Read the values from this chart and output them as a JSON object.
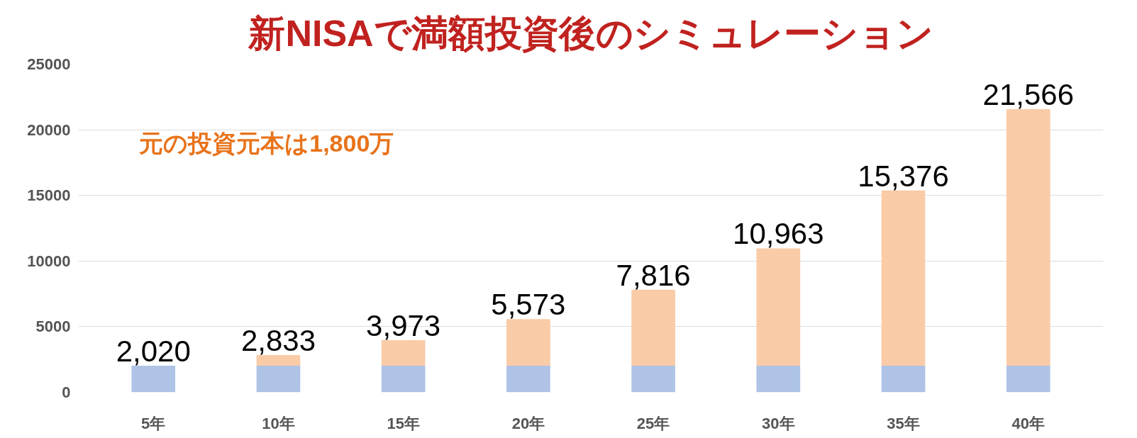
{
  "chart_data": {
    "type": "bar",
    "title": "新NISAで満額投資後のシミュレーション",
    "categories": [
      "5年",
      "10年",
      "15年",
      "20年",
      "25年",
      "30年",
      "35年",
      "40年"
    ],
    "stacked": true,
    "series": [
      {
        "color": "#aec3e6",
        "values": [
          2020,
          2020,
          2020,
          2020,
          2020,
          2020,
          2020,
          2020
        ]
      },
      {
        "color": "#f9cba7",
        "values": [
          0,
          813,
          1953,
          3553,
          5796,
          8943,
          13356,
          19546
        ]
      }
    ],
    "totals": [
      "2,020",
      "2,833",
      "3,973",
      "5,573",
      "7,816",
      "10,963",
      "15,376",
      "21,566"
    ],
    "ylim": [
      0,
      25000
    ],
    "yticks": [
      0,
      5000,
      10000,
      15000,
      20000,
      25000
    ],
    "grid": "y",
    "annotations": [
      "元の投資元本は1,800万"
    ]
  }
}
